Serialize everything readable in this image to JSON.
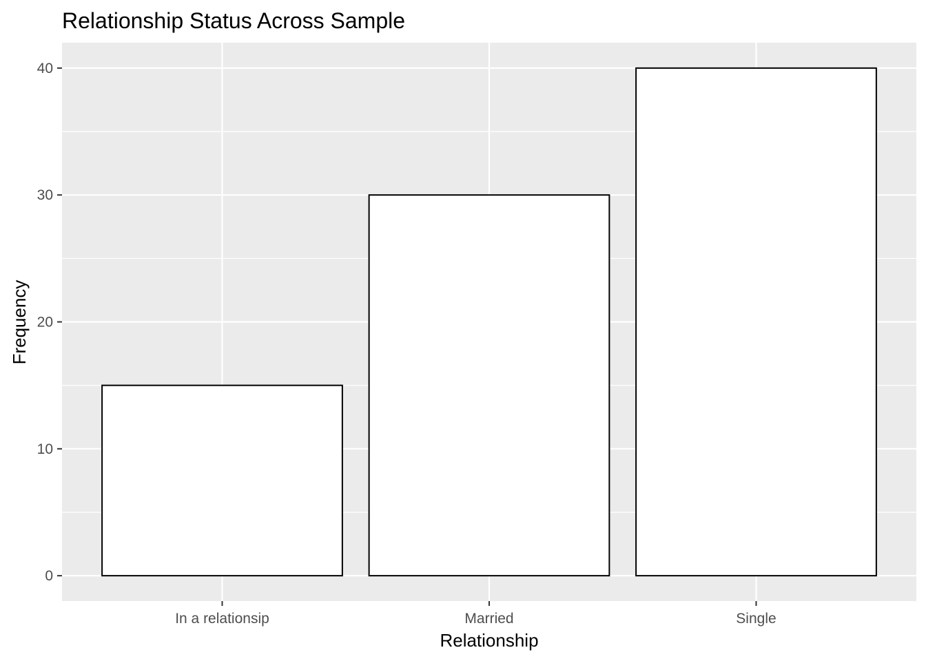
{
  "chart_data": {
    "type": "bar",
    "title": "Relationship Status Across Sample",
    "xlabel": "Relationship",
    "ylabel": "Frequency",
    "categories": [
      "In a relationsip",
      "Married",
      "Single"
    ],
    "values": [
      15,
      30,
      40
    ],
    "ylim": [
      -2,
      42
    ],
    "yticks": [
      "0",
      "10",
      "20",
      "30",
      "40"
    ],
    "grid": true,
    "legend": "none",
    "colors": {
      "panel_background": "#ebebeb",
      "grid": "#ffffff",
      "bar_fill": "#ffffff",
      "bar_stroke": "#000000",
      "tick_mark": "#333333",
      "tick_label": "#4d4d4d"
    }
  }
}
